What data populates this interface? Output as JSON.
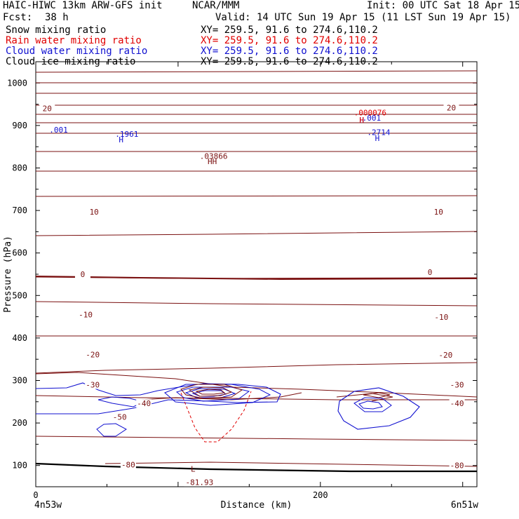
{
  "header": {
    "model": "HAIC-HIWC 13km ARW-GFS init",
    "org": "NCAR/MMM",
    "init": "Init: 00 UTC Sat 18 Apr 15",
    "fcst_label": "Fcst:",
    "fcst_value": "38 h",
    "valid": "Valid: 14 UTC Sun 19 Apr 15 (11 LST Sun 19 Apr 15)"
  },
  "fields": [
    {
      "label": "Snow mixing ratio",
      "xy": "XY= 259.5, 91.6 to 274.6,110.2",
      "color": "#000000"
    },
    {
      "label": "Rain water mixing ratio",
      "xy": "XY= 259.5, 91.6 to 274.6,110.2",
      "color": "#e00000"
    },
    {
      "label": "Cloud water mixing ratio",
      "xy": "XY= 259.5, 91.6 to 274.6,110.2",
      "color": "#1010d0"
    },
    {
      "label": "Cloud ice mixing ratio",
      "xy": "XY= 259.5, 91.6 to 274.6,110.2",
      "color": "#000000"
    }
  ],
  "chart_data": {
    "type": "cross-section contour",
    "xlabel": "Distance (km)",
    "ylabel": "Pressure (hPa)",
    "xlim": [
      0,
      310
    ],
    "ylim": [
      1050,
      50
    ],
    "xticks": [
      0,
      200
    ],
    "yticks": [
      100,
      200,
      300,
      400,
      500,
      600,
      700,
      800,
      900,
      1000
    ],
    "x_endpoints": {
      "left": "4n53w",
      "right": "6n51w"
    },
    "temperature_isotherms": {
      "color": "#7a1010",
      "labels": [
        {
          "value": "-80",
          "x": 65,
          "p": 102
        },
        {
          "value": "-80",
          "x": 296,
          "p": 100
        },
        {
          "value": "-50",
          "x": 59,
          "p": 214
        },
        {
          "value": "-40",
          "x": 76,
          "p": 246
        },
        {
          "value": "-40",
          "x": 296,
          "p": 246
        },
        {
          "value": "-30",
          "x": 40,
          "p": 290
        },
        {
          "value": "-30",
          "x": 296,
          "p": 290
        },
        {
          "value": "-20",
          "x": 40,
          "p": 361
        },
        {
          "value": "-20",
          "x": 288,
          "p": 360
        },
        {
          "value": "-10",
          "x": 35,
          "p": 455
        },
        {
          "value": "-10",
          "x": 285,
          "p": 449
        },
        {
          "value": "0",
          "x": 33,
          "p": 550
        },
        {
          "value": "0",
          "x": 277,
          "p": 555
        },
        {
          "value": "10",
          "x": 41,
          "p": 697
        },
        {
          "value": "10",
          "x": 283,
          "p": 697
        },
        {
          "value": "20",
          "x": 8,
          "p": 940
        },
        {
          "value": "20",
          "x": 292,
          "p": 942
        }
      ],
      "min_marker": {
        "symbol": "L",
        "value": "-81.93",
        "x": 115,
        "p": 92
      }
    },
    "cloud_water": {
      "color": "#1010d0",
      "labels": [
        {
          "text": ".001",
          "x": 16,
          "p": 890
        },
        {
          "text": "H",
          "x": 60,
          "p": 867
        },
        {
          "text": ".1961",
          "x": 64,
          "p": 880
        },
        {
          "text": "H",
          "x": 240,
          "p": 870
        },
        {
          "text": ".2714",
          "x": 241,
          "p": 884
        },
        {
          "text": "H",
          "x": 229,
          "p": 913
        },
        {
          "text": ".001",
          "x": 236,
          "p": 918
        }
      ]
    },
    "rain_water": {
      "color": "#e00000",
      "labels": [
        {
          "text": "H",
          "x": 229,
          "p": 913
        },
        {
          "text": ".000076",
          "x": 235,
          "p": 930
        }
      ]
    },
    "snow": {
      "color": "#7a1010",
      "labels": [
        {
          "text": "HH",
          "x": 124,
          "p": 816
        },
        {
          "text": ".03866",
          "x": 125,
          "p": 828
        }
      ]
    }
  }
}
